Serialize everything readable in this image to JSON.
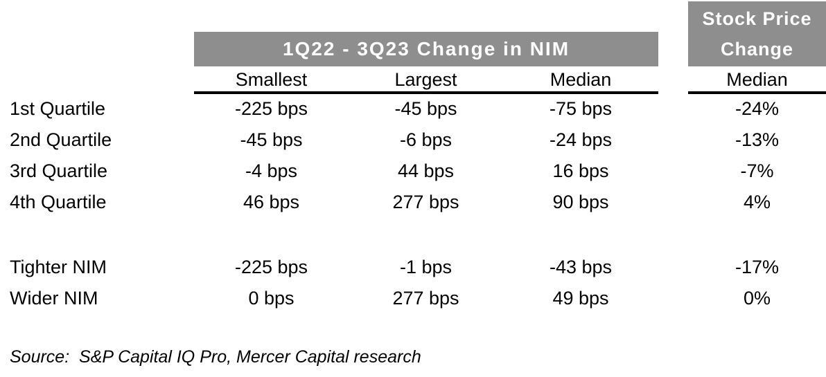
{
  "colors": {
    "header_bg": "#8e8e8e",
    "header_text": "#ffffff",
    "body_text": "#000000",
    "rule": "#000000"
  },
  "table": {
    "group_header": "1Q22 - 3Q23 Change in NIM",
    "stock_header": {
      "line1": "Stock Price",
      "line2": "Change"
    },
    "columns": [
      "Smallest",
      "Largest",
      "Median"
    ],
    "stock_column": "Median",
    "rows": [
      {
        "label": "1st Quartile",
        "smallest": "-225 bps",
        "largest": "-45 bps",
        "median": "-75 bps",
        "stock_median": "-24%"
      },
      {
        "label": "2nd Quartile",
        "smallest": "-45 bps",
        "largest": "-6 bps",
        "median": "-24 bps",
        "stock_median": "-13%"
      },
      {
        "label": "3rd Quartile",
        "smallest": "-4 bps",
        "largest": "44 bps",
        "median": "16 bps",
        "stock_median": "-7%"
      },
      {
        "label": "4th Quartile",
        "smallest": "46 bps",
        "largest": "277 bps",
        "median": "90 bps",
        "stock_median": "4%"
      },
      {
        "label": "Tighter NIM",
        "smallest": "-225 bps",
        "largest": "-1 bps",
        "median": "-43 bps",
        "stock_median": "-17%"
      },
      {
        "label": "Wider NIM",
        "smallest": "0 bps",
        "largest": "277 bps",
        "median": "49 bps",
        "stock_median": "0%"
      }
    ],
    "source": "Source:  S&P Capital IQ Pro, Mercer Capital research"
  },
  "chart_data": {
    "type": "table",
    "title": "1Q22 - 3Q23 Change in NIM",
    "column_groups": [
      {
        "label": "1Q22 - 3Q23 Change in NIM",
        "columns": [
          "Smallest",
          "Largest",
          "Median"
        ],
        "unit": "bps"
      },
      {
        "label": "Stock Price Change",
        "columns": [
          "Median"
        ],
        "unit": "%"
      }
    ],
    "rows": [
      {
        "label": "1st Quartile",
        "nim_change_bps": {
          "smallest": -225,
          "largest": -45,
          "median": -75
        },
        "stock_price_change_median_pct": -24
      },
      {
        "label": "2nd Quartile",
        "nim_change_bps": {
          "smallest": -45,
          "largest": -6,
          "median": -24
        },
        "stock_price_change_median_pct": -13
      },
      {
        "label": "3rd Quartile",
        "nim_change_bps": {
          "smallest": -4,
          "largest": 44,
          "median": 16
        },
        "stock_price_change_median_pct": -7
      },
      {
        "label": "4th Quartile",
        "nim_change_bps": {
          "smallest": 46,
          "largest": 277,
          "median": 90
        },
        "stock_price_change_median_pct": 4
      },
      {
        "label": "Tighter NIM",
        "nim_change_bps": {
          "smallest": -225,
          "largest": -1,
          "median": -43
        },
        "stock_price_change_median_pct": -17
      },
      {
        "label": "Wider NIM",
        "nim_change_bps": {
          "smallest": 0,
          "largest": 277,
          "median": 49
        },
        "stock_price_change_median_pct": 0
      }
    ],
    "source": "Source: S&P Capital IQ Pro, Mercer Capital research"
  }
}
